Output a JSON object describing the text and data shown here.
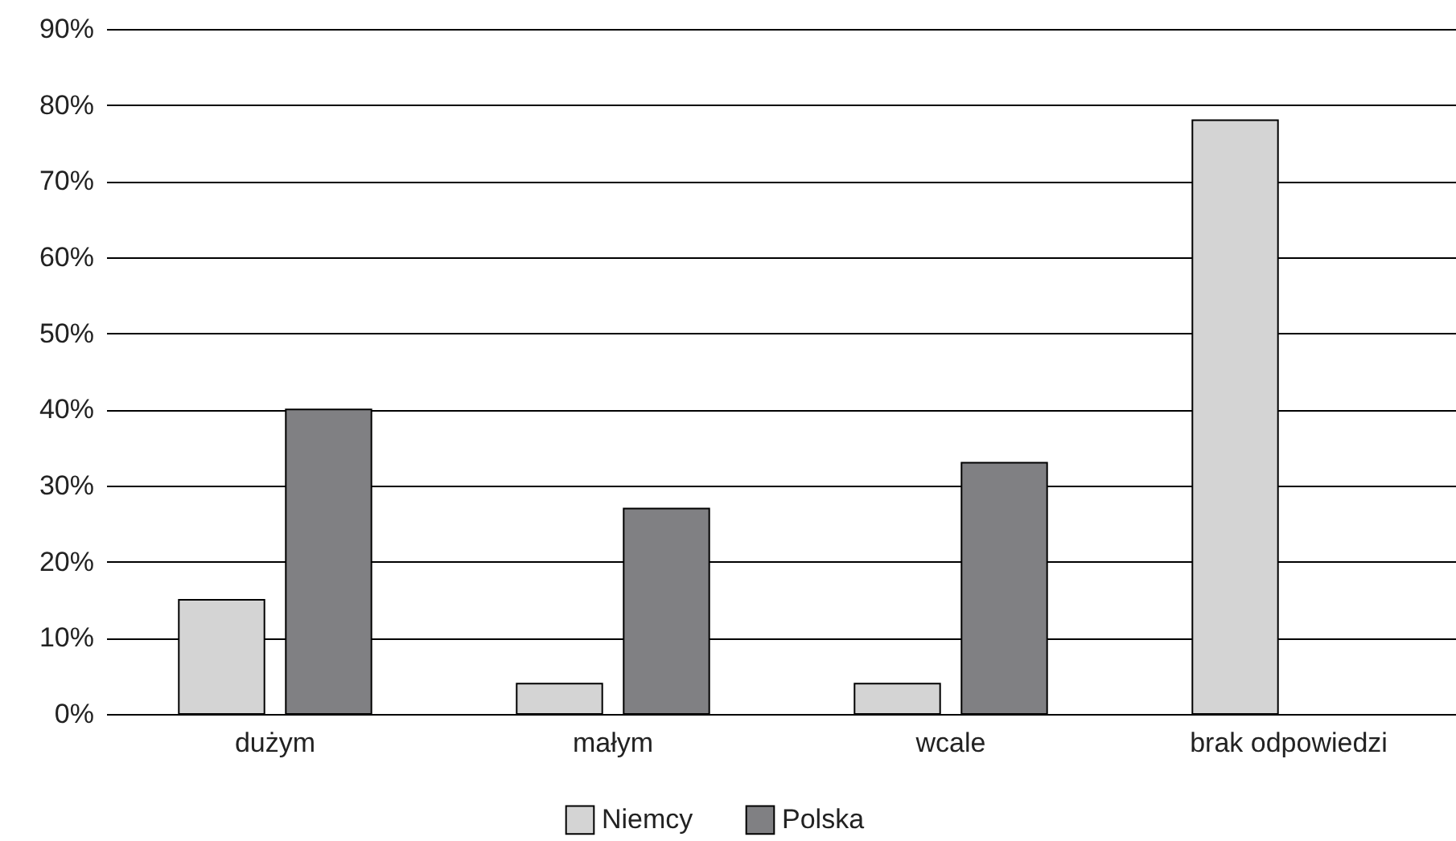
{
  "chart_data": {
    "type": "bar",
    "categories": [
      "dużym",
      "małym",
      "wcale",
      "brak odpowiedzi"
    ],
    "series": [
      {
        "name": "Niemcy",
        "color": "#d4d4d4",
        "values": [
          15,
          4,
          4,
          78
        ]
      },
      {
        "name": "Polska",
        "color": "#808083",
        "values": [
          40,
          27,
          33,
          null
        ]
      }
    ],
    "ylim": [
      0,
      90
    ],
    "yticks": [
      {
        "value": 0,
        "label": "0%"
      },
      {
        "value": 10,
        "label": "10%"
      },
      {
        "value": 20,
        "label": "20%"
      },
      {
        "value": 30,
        "label": "30%"
      },
      {
        "value": 40,
        "label": "40%"
      },
      {
        "value": 50,
        "label": "50%"
      },
      {
        "value": 60,
        "label": "60%"
      },
      {
        "value": 70,
        "label": "70%"
      },
      {
        "value": 80,
        "label": "80%"
      },
      {
        "value": 90,
        "label": "90%"
      }
    ],
    "grid": "y",
    "legend": "bottom"
  }
}
